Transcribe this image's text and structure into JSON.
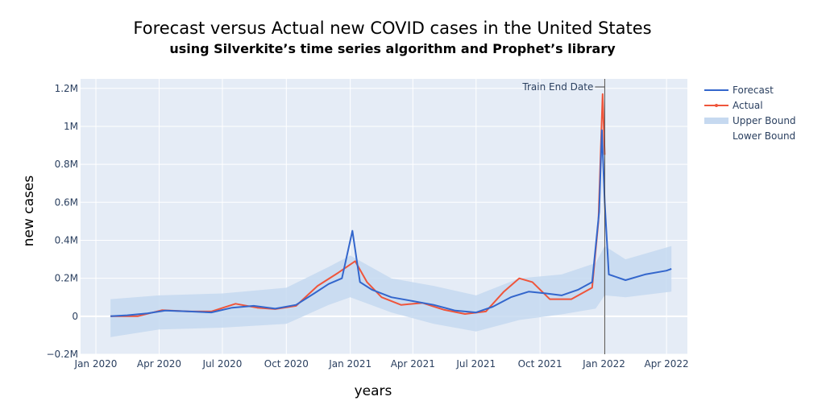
{
  "chart_data": {
    "type": "line",
    "title": "Forecast versus Actual new COVID cases in the United States",
    "subtitle": "using Silverkite’s time series algorithm and Prophet’s library",
    "xlabel": "years",
    "ylabel": "new cases",
    "x_ticks": [
      "Jan 2020",
      "Apr 2020",
      "Jul 2020",
      "Oct 2020",
      "Jan 2021",
      "Apr 2021",
      "Jul 2021",
      "Oct 2021",
      "Jan 2022",
      "Apr 2022"
    ],
    "x_tick_dates": [
      "2020-01-01",
      "2020-04-01",
      "2020-07-01",
      "2020-10-01",
      "2021-01-01",
      "2021-04-01",
      "2021-07-01",
      "2021-10-01",
      "2022-01-01",
      "2022-04-01"
    ],
    "xlim": [
      "2019-12-10",
      "2022-05-01"
    ],
    "y_ticks": [
      "−0.2M",
      "0",
      "0.2M",
      "0.4M",
      "0.6M",
      "0.8M",
      "1M",
      "1.2M"
    ],
    "y_tick_values": [
      -200000,
      0,
      200000,
      400000,
      600000,
      800000,
      1000000,
      1200000
    ],
    "ylim": [
      -200000,
      1250000
    ],
    "grid": true,
    "legend_position": "right",
    "annotation": {
      "label": "Train End Date",
      "date": "2022-01-02"
    },
    "series": [
      {
        "name": "Forecast",
        "color": "#3366cc",
        "points": [
          [
            "2020-01-22",
            0
          ],
          [
            "2020-02-15",
            5000
          ],
          [
            "2020-03-15",
            15000
          ],
          [
            "2020-04-10",
            30000
          ],
          [
            "2020-05-15",
            25000
          ],
          [
            "2020-06-15",
            20000
          ],
          [
            "2020-07-15",
            45000
          ],
          [
            "2020-08-15",
            55000
          ],
          [
            "2020-09-15",
            40000
          ],
          [
            "2020-10-15",
            60000
          ],
          [
            "2020-11-10",
            120000
          ],
          [
            "2020-12-01",
            170000
          ],
          [
            "2020-12-20",
            200000
          ],
          [
            "2021-01-04",
            450000
          ],
          [
            "2021-01-15",
            180000
          ],
          [
            "2021-02-01",
            140000
          ],
          [
            "2021-03-01",
            100000
          ],
          [
            "2021-04-01",
            80000
          ],
          [
            "2021-05-01",
            60000
          ],
          [
            "2021-06-01",
            30000
          ],
          [
            "2021-07-01",
            20000
          ],
          [
            "2021-07-25",
            50000
          ],
          [
            "2021-08-20",
            100000
          ],
          [
            "2021-09-15",
            130000
          ],
          [
            "2021-10-10",
            120000
          ],
          [
            "2021-11-01",
            110000
          ],
          [
            "2021-11-25",
            140000
          ],
          [
            "2021-12-15",
            180000
          ],
          [
            "2021-12-25",
            550000
          ],
          [
            "2021-12-29",
            980000
          ],
          [
            "2022-01-02",
            600000
          ],
          [
            "2022-01-08",
            220000
          ],
          [
            "2022-02-01",
            190000
          ],
          [
            "2022-03-01",
            220000
          ],
          [
            "2022-04-01",
            240000
          ],
          [
            "2022-04-08",
            250000
          ]
        ]
      },
      {
        "name": "Actual",
        "color": "#ef553b",
        "points": [
          [
            "2020-01-22",
            0
          ],
          [
            "2020-03-01",
            0
          ],
          [
            "2020-04-05",
            32000
          ],
          [
            "2020-05-15",
            25000
          ],
          [
            "2020-06-15",
            25000
          ],
          [
            "2020-07-20",
            66000
          ],
          [
            "2020-08-20",
            45000
          ],
          [
            "2020-09-15",
            38000
          ],
          [
            "2020-10-15",
            55000
          ],
          [
            "2020-11-15",
            160000
          ],
          [
            "2020-12-15",
            230000
          ],
          [
            "2021-01-08",
            290000
          ],
          [
            "2021-01-25",
            180000
          ],
          [
            "2021-02-15",
            100000
          ],
          [
            "2021-03-15",
            60000
          ],
          [
            "2021-04-15",
            70000
          ],
          [
            "2021-05-15",
            35000
          ],
          [
            "2021-06-15",
            12000
          ],
          [
            "2021-07-15",
            25000
          ],
          [
            "2021-08-10",
            130000
          ],
          [
            "2021-09-01",
            200000
          ],
          [
            "2021-09-20",
            180000
          ],
          [
            "2021-10-15",
            90000
          ],
          [
            "2021-11-15",
            90000
          ],
          [
            "2021-12-15",
            150000
          ],
          [
            "2021-12-24",
            500000
          ],
          [
            "2021-12-30",
            1170000
          ],
          [
            "2022-01-02",
            850000
          ]
        ]
      },
      {
        "name": "Upper Bound",
        "color": "#c6d9f0",
        "points": [
          [
            "2020-01-22",
            90000
          ],
          [
            "2020-04-01",
            110000
          ],
          [
            "2020-07-01",
            120000
          ],
          [
            "2020-10-01",
            150000
          ],
          [
            "2020-12-01",
            260000
          ],
          [
            "2021-01-01",
            320000
          ],
          [
            "2021-03-01",
            200000
          ],
          [
            "2021-05-01",
            160000
          ],
          [
            "2021-07-01",
            110000
          ],
          [
            "2021-09-01",
            200000
          ],
          [
            "2021-11-01",
            220000
          ],
          [
            "2021-12-20",
            280000
          ],
          [
            "2022-01-02",
            370000
          ],
          [
            "2022-02-01",
            300000
          ],
          [
            "2022-04-08",
            370000
          ]
        ]
      },
      {
        "name": "Lower Bound",
        "color": "#c6d9f0",
        "points": [
          [
            "2020-01-22",
            -110000
          ],
          [
            "2020-04-01",
            -70000
          ],
          [
            "2020-07-01",
            -60000
          ],
          [
            "2020-10-01",
            -40000
          ],
          [
            "2020-12-01",
            60000
          ],
          [
            "2021-01-01",
            100000
          ],
          [
            "2021-03-01",
            20000
          ],
          [
            "2021-05-01",
            -40000
          ],
          [
            "2021-07-01",
            -80000
          ],
          [
            "2021-09-01",
            -20000
          ],
          [
            "2021-11-01",
            10000
          ],
          [
            "2021-12-20",
            40000
          ],
          [
            "2022-01-02",
            110000
          ],
          [
            "2022-02-01",
            100000
          ],
          [
            "2022-04-08",
            130000
          ]
        ]
      }
    ]
  }
}
